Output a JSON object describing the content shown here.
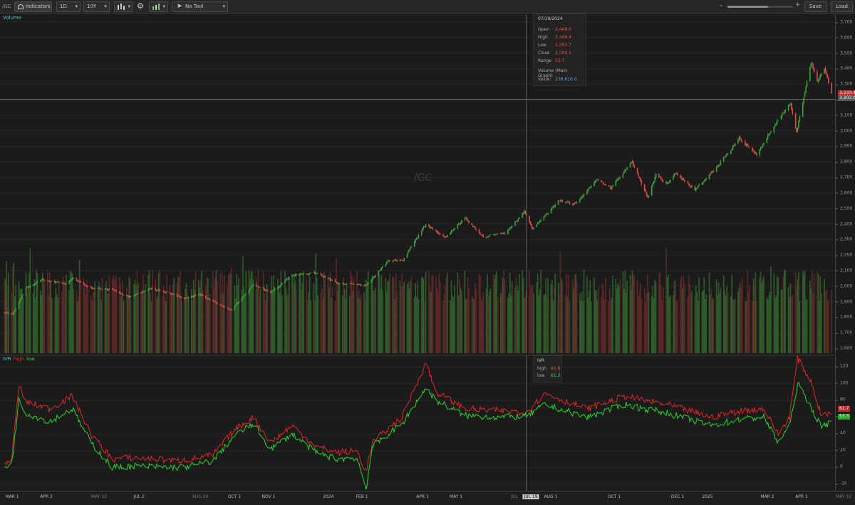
{
  "toolbar": {
    "symbol": "/GC",
    "indicators_label": "Indicators",
    "aggregation": "1D",
    "timeframe": "10Y",
    "tool_label": "No Tool",
    "save_label": "Save",
    "load_label": "Load",
    "zoom_level": 0.62,
    "icons": [
      "indicators-icon",
      "chart-style-icon",
      "gear-icon",
      "studies-icon",
      "cursor-icon",
      "zoom-out-icon",
      "zoom-in-icon"
    ]
  },
  "price_pane": {
    "label": "Volume",
    "watermark": "/GC",
    "crosshair_price_label": "3,203.0",
    "last_price_label": "3,233.4",
    "colors": {
      "up": "#3aa53a",
      "down": "#e04848",
      "vol_up": "#2f5a2a",
      "vol_down": "#5a2727"
    }
  },
  "tooltip": {
    "date": "07/19/2024",
    "rows": [
      {
        "key": "Open",
        "value": "2,448.0"
      },
      {
        "key": "High",
        "value": "2,448.4"
      },
      {
        "key": "Low",
        "value": "2,395.7"
      },
      {
        "key": "Close",
        "value": "2,399.1"
      },
      {
        "key": "Range",
        "value": "52.7"
      }
    ],
    "volume_title": "Volume (Main Graph)",
    "volume_key": "Value:",
    "volume_value": "238,616.0"
  },
  "ivr_pane": {
    "title": "IVR",
    "high_label": "high",
    "low_label": "low",
    "high_color": "#e0262b",
    "low_color": "#27d427",
    "last_high": "61.7",
    "last_low": "53.3"
  },
  "ivr_tooltip": {
    "title": "IVR",
    "high_key": "high",
    "high_value": "65.8",
    "low_key": "low",
    "low_value": "61.3"
  },
  "price_axis": [
    "3,700",
    "3,600",
    "3,500",
    "3,400",
    "3,300",
    "3,200",
    "3,100",
    "3,000",
    "2,900",
    "2,800",
    "2,700",
    "2,600",
    "2,500",
    "2,400",
    "2,300",
    "2,200",
    "2,100",
    "2,000",
    "1,900",
    "1,800",
    "1,700",
    "1,600"
  ],
  "ivr_axis": [
    "120",
    "100",
    "80",
    "60",
    "40",
    "20",
    "0",
    "-20"
  ],
  "x_axis": [
    {
      "label": "MAR 1",
      "major": true
    },
    {
      "label": "APR 2",
      "major": true
    },
    {
      "label": "MAY 22",
      "major": false
    },
    {
      "label": "JUL 2",
      "major": true
    },
    {
      "label": "AUG 28",
      "major": false
    },
    {
      "label": "OCT 1",
      "major": true
    },
    {
      "label": "NOV 1",
      "major": true
    },
    {
      "label": "2024",
      "major": true
    },
    {
      "label": "FEB 1",
      "major": true
    },
    {
      "label": "APR 1",
      "major": true
    },
    {
      "label": "MAY 1",
      "major": true
    },
    {
      "label": "JUL",
      "major": false
    },
    {
      "label": "JUL 19",
      "major": true,
      "highlight": true
    },
    {
      "label": "AUG 1",
      "major": true
    },
    {
      "label": "OCT 1",
      "major": true
    },
    {
      "label": "DEC 1",
      "major": true
    },
    {
      "label": "2025",
      "major": true
    },
    {
      "label": "MAR 2",
      "major": true
    },
    {
      "label": "APR 1",
      "major": true
    },
    {
      "label": "MAY 12",
      "major": false
    }
  ],
  "chart_data": {
    "type": "line",
    "title": "/GC",
    "price_anchors": [
      [
        "2023-02-27",
        1830
      ],
      [
        "2023-03-07",
        1820
      ],
      [
        "2023-03-20",
        1990
      ],
      [
        "2023-04-04",
        2040
      ],
      [
        "2023-04-28",
        2015
      ],
      [
        "2023-05-04",
        2050
      ],
      [
        "2023-05-22",
        1990
      ],
      [
        "2023-06-12",
        1975
      ],
      [
        "2023-06-29",
        1930
      ],
      [
        "2023-07-19",
        1985
      ],
      [
        "2023-08-04",
        1960
      ],
      [
        "2023-08-21",
        1920
      ],
      [
        "2023-09-04",
        1950
      ],
      [
        "2023-09-25",
        1880
      ],
      [
        "2023-10-06",
        1845
      ],
      [
        "2023-10-27",
        2010
      ],
      [
        "2023-11-13",
        1960
      ],
      [
        "2023-12-04",
        2070
      ],
      [
        "2023-12-27",
        2085
      ],
      [
        "2024-01-17",
        2020
      ],
      [
        "2024-02-14",
        2005
      ],
      [
        "2024-03-06",
        2160
      ],
      [
        "2024-03-21",
        2170
      ],
      [
        "2024-04-12",
        2400
      ],
      [
        "2024-05-01",
        2310
      ],
      [
        "2024-05-20",
        2440
      ],
      [
        "2024-06-07",
        2320
      ],
      [
        "2024-06-28",
        2340
      ],
      [
        "2024-07-17",
        2480
      ],
      [
        "2024-07-25",
        2370
      ],
      [
        "2024-08-20",
        2550
      ],
      [
        "2024-09-04",
        2525
      ],
      [
        "2024-09-26",
        2690
      ],
      [
        "2024-10-09",
        2630
      ],
      [
        "2024-10-30",
        2800
      ],
      [
        "2024-11-14",
        2570
      ],
      [
        "2024-11-22",
        2720
      ],
      [
        "2024-12-03",
        2660
      ],
      [
        "2024-12-11",
        2730
      ],
      [
        "2024-12-30",
        2620
      ],
      [
        "2025-01-22",
        2780
      ],
      [
        "2025-02-11",
        2950
      ],
      [
        "2025-02-28",
        2850
      ],
      [
        "2025-03-14",
        3000
      ],
      [
        "2025-04-02",
        3180
      ],
      [
        "2025-04-08",
        2990
      ],
      [
        "2025-04-22",
        3440
      ],
      [
        "2025-04-28",
        3320
      ],
      [
        "2025-05-05",
        3400
      ],
      [
        "2025-05-12",
        3233
      ]
    ],
    "ivr_high_anchors": [
      [
        "2023-02-27",
        5
      ],
      [
        "2023-03-06",
        10
      ],
      [
        "2023-03-13",
        98
      ],
      [
        "2023-03-20",
        78
      ],
      [
        "2023-04-12",
        70
      ],
      [
        "2023-05-04",
        85
      ],
      [
        "2023-05-22",
        40
      ],
      [
        "2023-06-12",
        10
      ],
      [
        "2023-07-03",
        12
      ],
      [
        "2023-08-14",
        8
      ],
      [
        "2023-08-28",
        10
      ],
      [
        "2023-09-18",
        15
      ],
      [
        "2023-10-09",
        45
      ],
      [
        "2023-10-27",
        60
      ],
      [
        "2023-11-13",
        30
      ],
      [
        "2023-12-04",
        50
      ],
      [
        "2023-12-27",
        25
      ],
      [
        "2024-01-17",
        18
      ],
      [
        "2024-02-05",
        20
      ],
      [
        "2024-02-14",
        -5
      ],
      [
        "2024-02-20",
        30
      ],
      [
        "2024-03-20",
        60
      ],
      [
        "2024-04-12",
        125
      ],
      [
        "2024-04-22",
        90
      ],
      [
        "2024-05-20",
        70
      ],
      [
        "2024-06-18",
        68
      ],
      [
        "2024-07-19",
        66
      ],
      [
        "2024-08-06",
        88
      ],
      [
        "2024-09-16",
        70
      ],
      [
        "2024-10-23",
        85
      ],
      [
        "2024-11-11",
        80
      ],
      [
        "2024-12-03",
        75
      ],
      [
        "2025-01-15",
        60
      ],
      [
        "2025-02-14",
        68
      ],
      [
        "2025-03-07",
        70
      ],
      [
        "2025-03-21",
        40
      ],
      [
        "2025-04-01",
        60
      ],
      [
        "2025-04-09",
        130
      ],
      [
        "2025-04-23",
        100
      ],
      [
        "2025-05-01",
        65
      ],
      [
        "2025-05-12",
        62
      ]
    ],
    "ivr_low_anchors": [
      [
        "2023-02-27",
        0
      ],
      [
        "2023-03-06",
        5
      ],
      [
        "2023-03-13",
        80
      ],
      [
        "2023-03-20",
        65
      ],
      [
        "2023-04-12",
        55
      ],
      [
        "2023-05-04",
        70
      ],
      [
        "2023-05-22",
        30
      ],
      [
        "2023-06-12",
        0
      ],
      [
        "2023-07-03",
        2
      ],
      [
        "2023-08-14",
        0
      ],
      [
        "2023-08-28",
        2
      ],
      [
        "2023-09-18",
        8
      ],
      [
        "2023-10-09",
        38
      ],
      [
        "2023-10-27",
        52
      ],
      [
        "2023-11-13",
        22
      ],
      [
        "2023-12-04",
        40
      ],
      [
        "2023-12-27",
        18
      ],
      [
        "2024-01-17",
        10
      ],
      [
        "2024-02-05",
        12
      ],
      [
        "2024-02-14",
        -25
      ],
      [
        "2024-02-20",
        25
      ],
      [
        "2024-03-20",
        52
      ],
      [
        "2024-04-12",
        95
      ],
      [
        "2024-04-22",
        80
      ],
      [
        "2024-05-20",
        62
      ],
      [
        "2024-06-18",
        60
      ],
      [
        "2024-07-19",
        61
      ],
      [
        "2024-08-06",
        75
      ],
      [
        "2024-09-16",
        60
      ],
      [
        "2024-10-23",
        75
      ],
      [
        "2024-11-11",
        70
      ],
      [
        "2024-12-03",
        65
      ],
      [
        "2025-01-15",
        50
      ],
      [
        "2025-02-14",
        58
      ],
      [
        "2025-03-07",
        60
      ],
      [
        "2025-03-21",
        30
      ],
      [
        "2025-04-01",
        50
      ],
      [
        "2025-04-09",
        100
      ],
      [
        "2025-04-23",
        70
      ],
      [
        "2025-05-01",
        50
      ],
      [
        "2025-05-12",
        53
      ]
    ]
  }
}
